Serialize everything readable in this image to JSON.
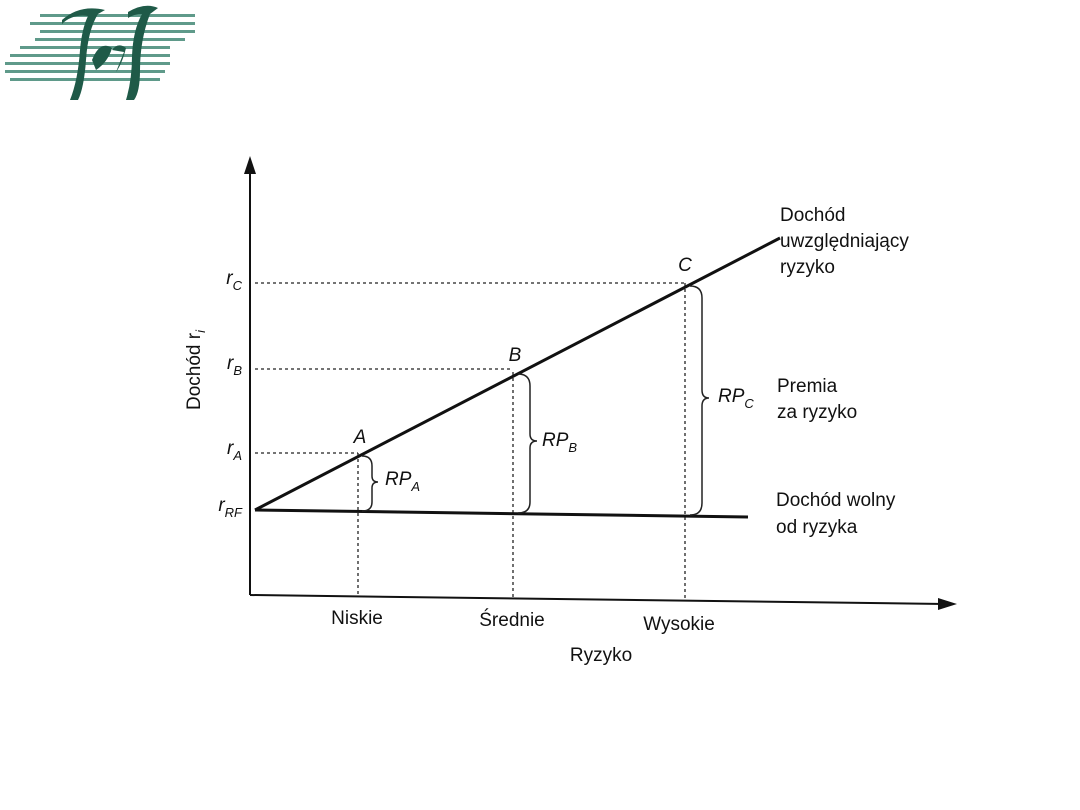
{
  "y_axis_label": {
    "text": "Dochód r",
    "sub": "i"
  },
  "x_axis_label": "Ryzyko",
  "y_ticks": [
    {
      "text": "r",
      "sub": "C"
    },
    {
      "text": "r",
      "sub": "B"
    },
    {
      "text": "r",
      "sub": "A"
    },
    {
      "text": "r",
      "sub": "RF"
    }
  ],
  "x_ticks": [
    "Niskie",
    "Średnie",
    "Wysokie"
  ],
  "points": [
    "A",
    "B",
    "C"
  ],
  "premiums": [
    {
      "text": "RP",
      "sub": "A"
    },
    {
      "text": "RP",
      "sub": "B"
    },
    {
      "text": "RP",
      "sub": "C"
    }
  ],
  "line_labels": {
    "risk_adjusted": [
      "Dochód",
      "uwzględniający",
      "ryzyko"
    ],
    "premium": [
      "Premia",
      "za ryzyko"
    ],
    "risk_free": [
      "Dochód wolny",
      "od ryzyka"
    ]
  }
}
